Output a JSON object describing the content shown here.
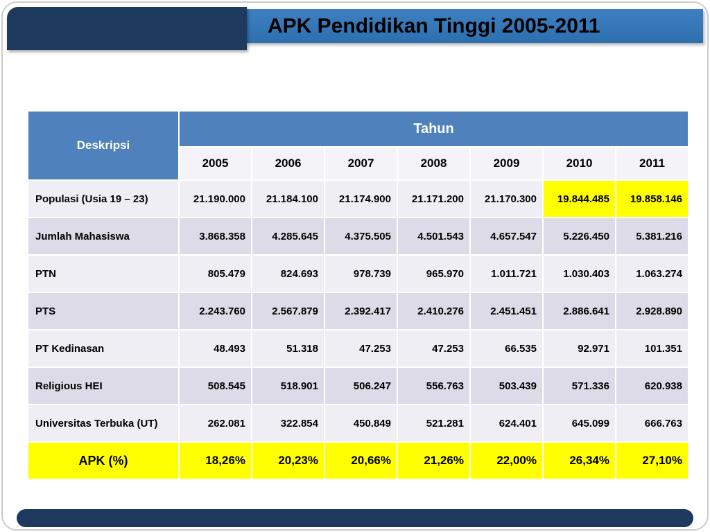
{
  "title": "APK Pendidikan Tinggi 2005-2011",
  "table": {
    "corner_header": "Deskripsi",
    "group_header": "Tahun",
    "years": [
      "2005",
      "2006",
      "2007",
      "2008",
      "2009",
      "2010",
      "2011"
    ],
    "rows": [
      {
        "label": "Populasi (Usia 19 – 23)",
        "values": [
          "21.190.000",
          "21.184.100",
          "21.174.900",
          "21.171.200",
          "21.170.300",
          "19.844.485",
          "19.858.146"
        ],
        "highlight_cols": [
          5,
          6
        ]
      },
      {
        "label": "Jumlah Mahasiswa",
        "values": [
          "3.868.358",
          "4.285.645",
          "4.375.505",
          "4.501.543",
          "4.657.547",
          "5.226.450",
          "5.381.216"
        ]
      },
      {
        "label": "PTN",
        "values": [
          "805.479",
          "824.693",
          "978.739",
          "965.970",
          "1.011.721",
          "1.030.403",
          "1.063.274"
        ]
      },
      {
        "label": "PTS",
        "values": [
          "2.243.760",
          "2.567.879",
          "2.392.417",
          "2.410.276",
          "2.451.451",
          "2.886.641",
          "2.928.890"
        ]
      },
      {
        "label": "PT Kedinasan",
        "values": [
          "48.493",
          "51.318",
          "47.253",
          "47.253",
          "66.535",
          "92.971",
          "101.351"
        ]
      },
      {
        "label": "Religious HEI",
        "values": [
          "508.545",
          "518.901",
          "506.247",
          "556.763",
          "503.439",
          "571.336",
          "620.938"
        ]
      },
      {
        "label": "Universitas Terbuka (UT)",
        "values": [
          "262.081",
          "322.854",
          "450.849",
          "521.281",
          "624.401",
          "645.099",
          "666.763"
        ]
      },
      {
        "label": "APK (%)",
        "values": [
          "18,26%",
          "20,23%",
          "20,66%",
          "21,26%",
          "22,00%",
          "26,34%",
          "27,10%"
        ],
        "highlight_row": true
      }
    ]
  },
  "colors": {
    "header_blue": "#4f81bd",
    "navy": "#1e3a5e",
    "title_band_blue": "#2e6fae",
    "highlight_yellow": "#ffff00",
    "row_light": "#efeef4",
    "row_dark": "#dcdbe7"
  }
}
